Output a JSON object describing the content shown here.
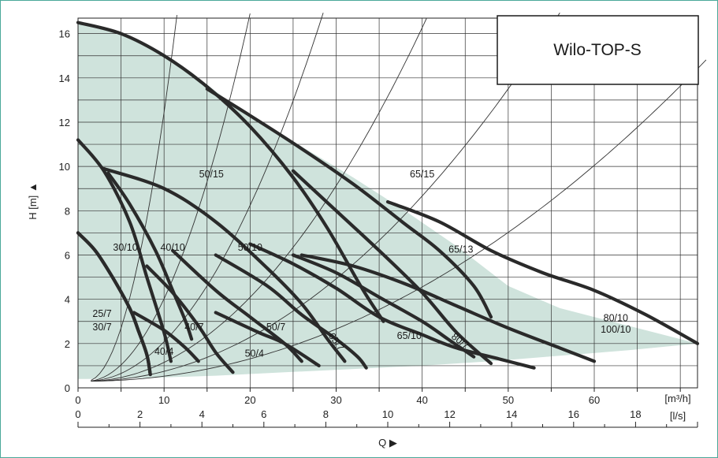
{
  "chart_data": {
    "type": "line",
    "title": "Wilo-TOP-S",
    "xlabel": "Q ▶",
    "ylabel": "H [m] ▲",
    "x_unit_primary": "[m³/h]",
    "x_unit_secondary": "[l/s]",
    "xlim": [
      0,
      72
    ],
    "ylim": [
      0,
      16.7
    ],
    "x_ticks": [
      "0",
      "10",
      "20",
      "30",
      "40",
      "50",
      "60"
    ],
    "x_ticks_values": [
      0,
      10,
      20,
      30,
      40,
      50,
      60
    ],
    "x2_ticks": [
      "0",
      "2",
      "4",
      "6",
      "8",
      "10",
      "12",
      "14",
      "16",
      "18"
    ],
    "x2_ticks_values": [
      0,
      2,
      4,
      6,
      8,
      10,
      12,
      14,
      16,
      18
    ],
    "y_ticks": [
      "0",
      "2",
      "4",
      "6",
      "8",
      "10",
      "12",
      "14",
      "16"
    ],
    "y_ticks_values": [
      0,
      2,
      4,
      6,
      8,
      10,
      12,
      14,
      16
    ],
    "grid": true,
    "colors": {
      "curve": "#2a2a2a",
      "area": "#cfe3dc",
      "system": "#333333",
      "grid": "#333333",
      "frame": "#4aa89a"
    },
    "envelope": [
      [
        0,
        16.5
      ],
      [
        5,
        16
      ],
      [
        10,
        15
      ],
      [
        14,
        14
      ],
      [
        20,
        12.2
      ],
      [
        26,
        10.9
      ],
      [
        32,
        9.5
      ],
      [
        38,
        8
      ],
      [
        44,
        6.4
      ],
      [
        50,
        4.6
      ],
      [
        56,
        3.6
      ],
      [
        64,
        2.8
      ],
      [
        72,
        2.0
      ],
      [
        64,
        1.7
      ],
      [
        56,
        1.45
      ],
      [
        48,
        1.2
      ],
      [
        40,
        1.0
      ],
      [
        32,
        0.85
      ],
      [
        24,
        0.7
      ],
      [
        16,
        0.55
      ],
      [
        8,
        0.45
      ],
      [
        1,
        0.4
      ],
      [
        0,
        0.4
      ]
    ],
    "series": [
      {
        "name": "25/7",
        "values": [
          [
            0,
            7.0
          ],
          [
            2,
            6.2
          ],
          [
            4,
            5.0
          ],
          [
            6,
            3.6
          ],
          [
            7,
            2.6
          ],
          [
            8,
            1.5
          ],
          [
            8.4,
            0.6
          ]
        ]
      },
      {
        "name": "30/7",
        "values": [
          [
            0,
            7.0
          ],
          [
            2,
            6.2
          ],
          [
            4,
            5.0
          ],
          [
            6,
            3.6
          ],
          [
            7,
            2.6
          ],
          [
            8,
            1.5
          ],
          [
            8.4,
            0.6
          ]
        ]
      },
      {
        "name": "30/10",
        "values": [
          [
            0,
            11.2
          ],
          [
            3,
            9.8
          ],
          [
            6,
            7.5
          ],
          [
            8,
            5.0
          ],
          [
            10,
            2.5
          ],
          [
            10.8,
            1.2
          ]
        ]
      },
      {
        "name": "40/10",
        "values": [
          [
            3.5,
            9.7
          ],
          [
            6,
            8.3
          ],
          [
            9,
            6.2
          ],
          [
            11,
            4.4
          ],
          [
            12.5,
            3.0
          ],
          [
            13.2,
            2.2
          ]
        ]
      },
      {
        "name": "40/7",
        "values": [
          [
            6.5,
            3.4
          ],
          [
            10,
            2.6
          ],
          [
            12.5,
            1.8
          ],
          [
            14,
            1.2
          ]
        ]
      },
      {
        "name": "40/4",
        "values": [
          [
            8,
            5.5
          ],
          [
            11,
            4.3
          ],
          [
            14,
            2.8
          ],
          [
            16,
            1.6
          ],
          [
            18,
            0.7
          ]
        ]
      },
      {
        "name": "50/10",
        "values": [
          [
            3,
            9.9
          ],
          [
            10,
            9.0
          ],
          [
            16,
            7.5
          ],
          [
            22,
            5.4
          ],
          [
            26,
            3.8
          ],
          [
            29,
            2.2
          ],
          [
            31,
            1.2
          ]
        ]
      },
      {
        "name": "50/7",
        "values": [
          [
            11,
            6.2
          ],
          [
            16,
            4.4
          ],
          [
            20,
            3.2
          ],
          [
            24,
            2.0
          ],
          [
            26,
            1.2
          ]
        ]
      },
      {
        "name": "50/4",
        "values": [
          [
            16,
            3.4
          ],
          [
            21,
            2.5
          ],
          [
            24,
            2.0
          ],
          [
            28,
            1.0
          ]
        ]
      },
      {
        "name": "50/15",
        "values": [
          [
            0,
            16.5
          ],
          [
            5,
            16.0
          ],
          [
            10,
            15.0
          ],
          [
            15,
            13.6
          ],
          [
            20,
            11.8
          ],
          [
            25,
            9.5
          ],
          [
            29,
            7.2
          ],
          [
            33,
            4.5
          ],
          [
            35.5,
            3.0
          ]
        ]
      },
      {
        "name": "65/15",
        "values": [
          [
            15,
            13.5
          ],
          [
            20,
            12.3
          ],
          [
            26,
            10.8
          ],
          [
            32,
            9.2
          ],
          [
            38,
            7.4
          ],
          [
            42,
            6.2
          ],
          [
            46,
            4.6
          ],
          [
            48,
            3.2
          ]
        ]
      },
      {
        "name": "65/13",
        "values": [
          [
            25,
            9.8
          ],
          [
            30,
            8.0
          ],
          [
            35,
            6.2
          ],
          [
            40,
            4.3
          ],
          [
            44,
            2.5
          ],
          [
            48,
            1.1
          ]
        ]
      },
      {
        "name": "65/7",
        "values": [
          [
            16,
            6.0
          ],
          [
            22,
            4.6
          ],
          [
            26,
            3.3
          ],
          [
            30,
            2.2
          ],
          [
            32.5,
            1.4
          ],
          [
            33.5,
            0.9
          ]
        ]
      },
      {
        "name": "65/10",
        "values": [
          [
            20,
            6.5
          ],
          [
            25,
            5.6
          ],
          [
            30,
            4.5
          ],
          [
            35,
            3.2
          ],
          [
            40,
            2.4
          ],
          [
            44,
            1.8
          ],
          [
            49,
            1.3
          ],
          [
            53,
            0.9
          ]
        ]
      },
      {
        "name": "80/7",
        "values": [
          [
            25,
            6.0
          ],
          [
            30,
            5.2
          ],
          [
            35,
            4.1
          ],
          [
            40,
            3.0
          ],
          [
            43,
            2.2
          ],
          [
            46,
            1.4
          ]
        ]
      },
      {
        "name": "80/10",
        "values": [
          [
            26,
            6.0
          ],
          [
            32,
            5.5
          ],
          [
            38,
            4.7
          ],
          [
            44,
            3.7
          ],
          [
            50,
            2.7
          ],
          [
            56,
            1.8
          ],
          [
            60,
            1.2
          ]
        ]
      },
      {
        "name": "100/10",
        "values": [
          [
            36,
            8.4
          ],
          [
            42,
            7.5
          ],
          [
            48,
            6.2
          ],
          [
            54,
            5.2
          ],
          [
            60,
            4.4
          ],
          [
            66,
            3.3
          ],
          [
            72,
            2.0
          ]
        ]
      }
    ],
    "system_curves_k": [
      0.15,
      0.046,
      0.022,
      0.0105,
      0.0055,
      0.0028
    ],
    "labels": [
      {
        "text": "50/15",
        "x": 15.5,
        "y": 9.5
      },
      {
        "text": "65/15",
        "x": 40,
        "y": 9.5
      },
      {
        "text": "65/13",
        "x": 44.5,
        "y": 6.1
      },
      {
        "text": "30/10",
        "x": 5.5,
        "y": 6.2
      },
      {
        "text": "40/10",
        "x": 11,
        "y": 6.2
      },
      {
        "text": "50/10",
        "x": 20,
        "y": 6.2
      },
      {
        "text": "80/10",
        "x": 62.5,
        "y": 3.0
      },
      {
        "text": "100/10",
        "x": 62.5,
        "y": 2.5
      },
      {
        "text": "25/7",
        "x": 2.8,
        "y": 3.2
      },
      {
        "text": "30/7",
        "x": 2.8,
        "y": 2.6
      },
      {
        "text": "40/7",
        "x": 13.5,
        "y": 2.6
      },
      {
        "text": "50/7",
        "x": 23,
        "y": 2.6
      },
      {
        "text": "65/7",
        "x": 29.7,
        "y": 2.0,
        "rotate": 55
      },
      {
        "text": "65/10",
        "x": 38.5,
        "y": 2.2
      },
      {
        "text": "80/7",
        "x": 44.2,
        "y": 2.0,
        "rotate": 38
      },
      {
        "text": "40/4",
        "x": 10,
        "y": 1.5
      },
      {
        "text": "50/4",
        "x": 20.5,
        "y": 1.4
      }
    ]
  }
}
